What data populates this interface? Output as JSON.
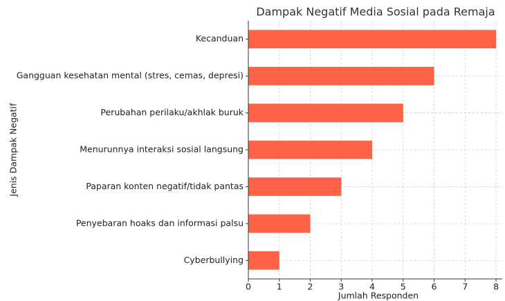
{
  "chart_data": {
    "type": "barh",
    "title": "Dampak Negatif Media Sosial pada Remaja",
    "xlabel": "Jumlah Responden",
    "ylabel": "Jenis Dampak Negatif",
    "categories": [
      "Kecanduan",
      "Gangguan kesehatan mental (stres, cemas, depresi)",
      "Perubahan perilaku/akhlak buruk",
      "Menurunnya interaksi sosial langsung",
      "Paparan konten negatif/tidak pantas",
      "Penyebaran hoaks dan informasi palsu",
      "Cyberbullying"
    ],
    "values": [
      8,
      6,
      5,
      4,
      3,
      2,
      1
    ],
    "color": "#ff6347",
    "xlim": [
      0,
      8.2
    ],
    "xticks": [
      0,
      1,
      2,
      3,
      4,
      5,
      6,
      7,
      8
    ],
    "grid": true
  }
}
